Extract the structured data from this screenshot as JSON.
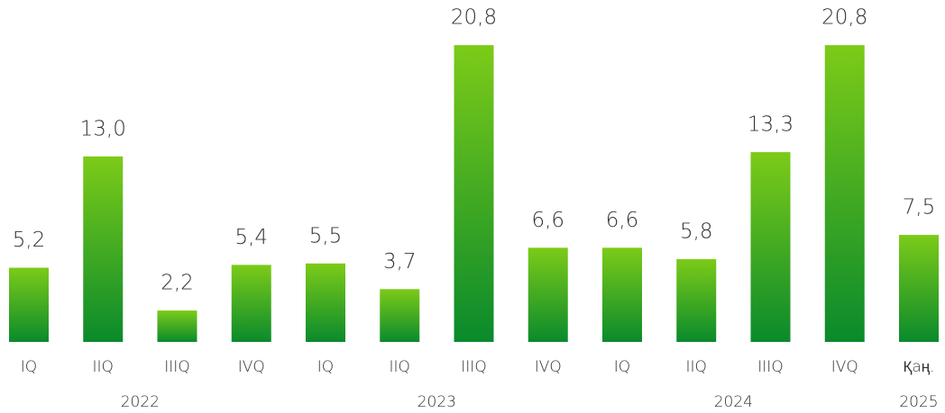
{
  "chart_data": {
    "type": "bar",
    "categories": [
      "IQ",
      "IIQ",
      "IIIQ",
      "IVQ",
      "IQ",
      "IIQ",
      "IIIQ",
      "IVQ",
      "IQ",
      "IIQ",
      "IIIQ",
      "IVQ",
      "Қаң."
    ],
    "values": [
      5.2,
      13.0,
      2.2,
      5.4,
      5.5,
      3.7,
      20.8,
      6.6,
      6.6,
      5.8,
      13.3,
      20.8,
      7.5
    ],
    "value_labels": [
      "5,2",
      "13,0",
      "2,2",
      "5,4",
      "5,5",
      "3,7",
      "20,8",
      "6,6",
      "6,6",
      "5,8",
      "13,3",
      "20,8",
      "7,5"
    ],
    "x_groups": [
      {
        "label": "2022",
        "size": 4
      },
      {
        "label": "2023",
        "size": 4
      },
      {
        "label": "2024",
        "size": 4
      },
      {
        "label": "2025",
        "size": 1
      }
    ],
    "color": [
      "#7ccb18",
      "#0a8a2c"
    ],
    "ylim": [
      0,
      21
    ]
  }
}
